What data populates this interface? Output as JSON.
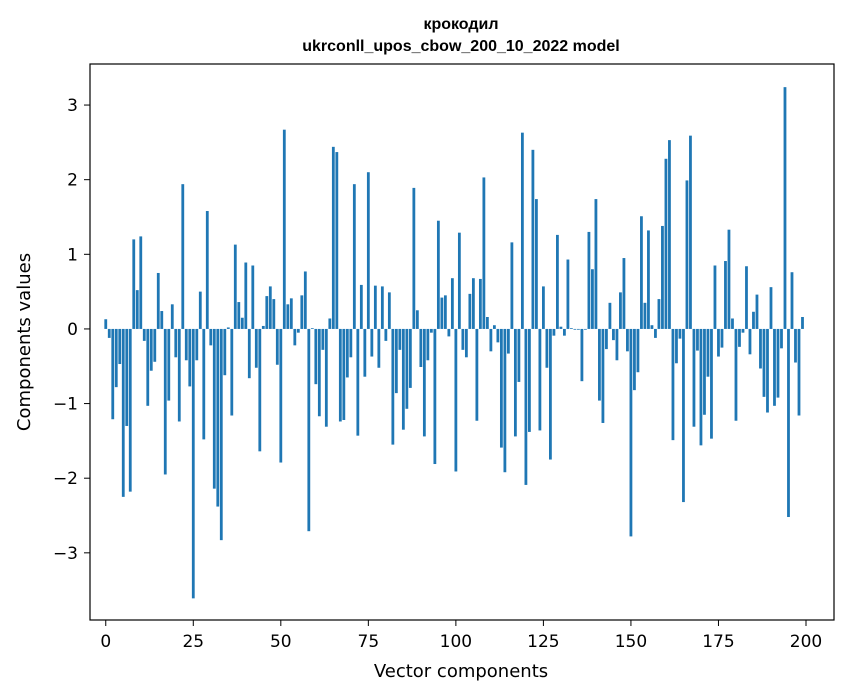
{
  "chart_data": {
    "type": "bar",
    "title_line1": "крокодил",
    "title_line2": "ukrconll_upos_cbow_200_10_2022 model",
    "xlabel": "Vector components",
    "ylabel": "Components values",
    "xlim": [
      -4.5,
      208
    ],
    "ylim": [
      -3.9,
      3.55
    ],
    "xticks": [
      0,
      25,
      50,
      75,
      100,
      125,
      150,
      175,
      200
    ],
    "xtick_labels": [
      "0",
      "25",
      "50",
      "75",
      "100",
      "125",
      "150",
      "175",
      "200"
    ],
    "yticks": [
      -3,
      -2,
      -1,
      0,
      1,
      2,
      3
    ],
    "ytick_labels": [
      "−3",
      "−2",
      "−1",
      "0",
      "1",
      "2",
      "3"
    ],
    "bar_color": "#1f77b4",
    "x": [
      0,
      1,
      2,
      3,
      4,
      5,
      6,
      7,
      8,
      9,
      10,
      11,
      12,
      13,
      14,
      15,
      16,
      17,
      18,
      19,
      20,
      21,
      22,
      23,
      24,
      25,
      26,
      27,
      28,
      29,
      30,
      31,
      32,
      33,
      34,
      35,
      36,
      37,
      38,
      39,
      40,
      41,
      42,
      43,
      44,
      45,
      46,
      47,
      48,
      49,
      50,
      51,
      52,
      53,
      54,
      55,
      56,
      57,
      58,
      59,
      60,
      61,
      62,
      63,
      64,
      65,
      66,
      67,
      68,
      69,
      70,
      71,
      72,
      73,
      74,
      75,
      76,
      77,
      78,
      79,
      80,
      81,
      82,
      83,
      84,
      85,
      86,
      87,
      88,
      89,
      90,
      91,
      92,
      93,
      94,
      95,
      96,
      97,
      98,
      99,
      100,
      101,
      102,
      103,
      104,
      105,
      106,
      107,
      108,
      109,
      110,
      111,
      112,
      113,
      114,
      115,
      116,
      117,
      118,
      119,
      120,
      121,
      122,
      123,
      124,
      125,
      126,
      127,
      128,
      129,
      130,
      131,
      132,
      133,
      134,
      135,
      136,
      137,
      138,
      139,
      140,
      141,
      142,
      143,
      144,
      145,
      146,
      147,
      148,
      149,
      150,
      151,
      152,
      153,
      154,
      155,
      156,
      157,
      158,
      159,
      160,
      161,
      162,
      163,
      164,
      165,
      166,
      167,
      168,
      169,
      170,
      171,
      172,
      173,
      174,
      175,
      176,
      177,
      178,
      179,
      180,
      181,
      182,
      183,
      184,
      185,
      186,
      187,
      188,
      189,
      190,
      191,
      192,
      193,
      194,
      195,
      196,
      197,
      198,
      199
    ],
    "values": [
      0.13,
      -0.12,
      -1.21,
      -0.78,
      -0.47,
      -2.25,
      -1.3,
      -2.18,
      1.2,
      0.52,
      1.24,
      -0.16,
      -1.03,
      -0.56,
      -0.44,
      0.75,
      0.24,
      -1.95,
      -0.96,
      0.33,
      -0.38,
      -1.24,
      1.94,
      -0.42,
      -0.77,
      -3.61,
      -0.42,
      0.5,
      -1.48,
      1.58,
      -0.22,
      -2.14,
      -2.38,
      -2.83,
      -0.62,
      0.02,
      -1.16,
      1.13,
      0.36,
      0.15,
      0.89,
      -0.66,
      0.85,
      -0.52,
      -1.64,
      0.04,
      0.44,
      0.57,
      0.4,
      -0.48,
      -1.79,
      2.67,
      0.33,
      0.41,
      -0.22,
      -0.05,
      0.45,
      0.77,
      -2.71,
      0.01,
      -0.74,
      -1.17,
      -0.28,
      -1.31,
      0.14,
      2.44,
      2.37,
      -1.24,
      -1.22,
      -0.65,
      -0.38,
      1.94,
      -1.43,
      0.59,
      -0.64,
      2.1,
      -0.37,
      0.58,
      -0.52,
      0.57,
      -0.16,
      0.49,
      -1.55,
      -0.86,
      -0.28,
      -1.35,
      -1.07,
      -0.79,
      1.89,
      0.25,
      -0.51,
      -1.44,
      -0.42,
      -0.05,
      -1.81,
      1.45,
      0.42,
      0.45,
      -0.1,
      0.68,
      -1.91,
      1.29,
      -0.28,
      -0.38,
      0.47,
      0.68,
      -1.23,
      0.67,
      2.03,
      0.16,
      -0.3,
      0.05,
      -0.18,
      -1.59,
      -1.92,
      -0.33,
      1.16,
      -1.44,
      -0.71,
      2.63,
      -2.09,
      -1.38,
      2.4,
      1.74,
      -1.36,
      0.57,
      -0.52,
      -1.75,
      -0.09,
      1.26,
      0.03,
      -0.09,
      0.93,
      0.01,
      -0.01,
      -0.01,
      -0.7,
      -0.01,
      1.3,
      0.8,
      1.74,
      -0.96,
      -1.26,
      -0.27,
      0.35,
      -0.15,
      -0.42,
      0.49,
      0.95,
      -0.3,
      -2.78,
      -0.82,
      -0.58,
      1.51,
      0.35,
      1.32,
      0.05,
      -0.12,
      0.4,
      1.38,
      2.28,
      2.53,
      -1.49,
      -0.46,
      -0.13,
      -2.32,
      1.99,
      2.59,
      -1.31,
      -0.29,
      -1.56,
      -1.15,
      -0.64,
      -1.47,
      0.85,
      -0.37,
      -0.25,
      0.91,
      1.33,
      0.14,
      -1.23,
      -0.24,
      -0.05,
      0.84,
      -0.34,
      0.23,
      0.46,
      -0.53,
      -0.91,
      -1.12,
      0.56,
      -1.03,
      -0.92,
      -0.26,
      3.24,
      -2.52,
      0.76,
      -0.45,
      -1.16,
      0.16
    ]
  }
}
